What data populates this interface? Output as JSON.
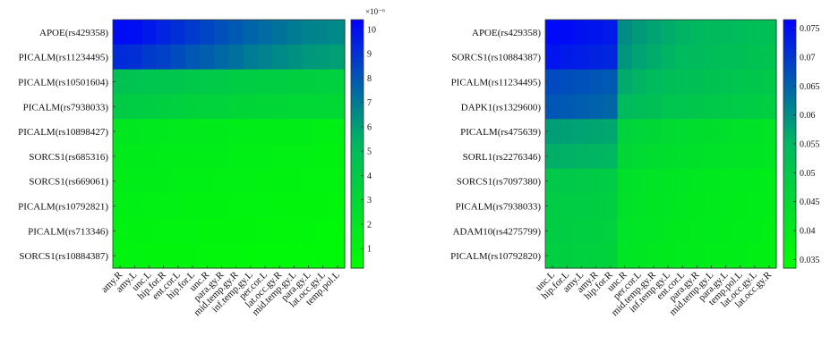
{
  "chart_data": [
    {
      "type": "heatmap",
      "rows": [
        "APOE(rs429358)",
        "PICALM(rs11234495)",
        "PICALM(rs10501604)",
        "PICALM(rs7938033)",
        "PICALM(rs10898427)",
        "SORCS1(rs685316)",
        "SORCS1(rs669061)",
        "PICALM(rs10792821)",
        "PICALM(rs713346)",
        "SORCS1(rs10884387)"
      ],
      "columns": [
        "amy.R",
        "amy.L",
        "unc.L",
        "hip.for.R",
        "ent.cor.L",
        "hip.for.L",
        "unc.R",
        "para.gy.R",
        "mid.temp.gy.R",
        "inf.temp.gy.L",
        "per.cor.L",
        "lat.occ.gy.R",
        "mid.temp.gy.L",
        "para.gy.L",
        "lat.occ.gy.L",
        "temp.pol.L"
      ],
      "colorbar": {
        "min": 0.2,
        "max": 10.4,
        "ticks": [
          1,
          2,
          3,
          4,
          5,
          6,
          7,
          8,
          9,
          10
        ],
        "multiplier": "×10⁻⁶",
        "colors": [
          "#00ff00",
          "#00b860",
          "#0000ff"
        ]
      },
      "values": [
        [
          10.1,
          10.0,
          9.7,
          9.4,
          9.1,
          8.8,
          8.5,
          8.2,
          7.9,
          7.6,
          7.4,
          7.2,
          7.0,
          6.8,
          6.7,
          6.6
        ],
        [
          9.2,
          9.1,
          8.8,
          8.6,
          8.3,
          8.0,
          7.8,
          7.5,
          7.3,
          7.0,
          6.8,
          6.6,
          6.4,
          6.2,
          6.1,
          6.0
        ],
        [
          4.6,
          4.5,
          4.4,
          4.3,
          4.2,
          4.1,
          4.0,
          3.9,
          3.8,
          3.8,
          3.7,
          3.7,
          3.6,
          3.6,
          3.5,
          3.5
        ],
        [
          3.9,
          3.8,
          3.7,
          3.6,
          3.5,
          3.4,
          3.3,
          3.3,
          3.2,
          3.2,
          3.1,
          3.1,
          3.0,
          3.0,
          3.0,
          2.9
        ],
        [
          1.9,
          1.9,
          1.8,
          1.8,
          1.7,
          1.7,
          1.6,
          1.6,
          1.5,
          1.5,
          1.5,
          1.4,
          1.4,
          1.4,
          1.3,
          1.3
        ],
        [
          1.7,
          1.6,
          1.6,
          1.5,
          1.5,
          1.4,
          1.4,
          1.4,
          1.3,
          1.3,
          1.3,
          1.2,
          1.2,
          1.2,
          1.1,
          1.1
        ],
        [
          1.5,
          1.5,
          1.4,
          1.4,
          1.3,
          1.3,
          1.3,
          1.2,
          1.2,
          1.2,
          1.1,
          1.1,
          1.1,
          1.0,
          1.0,
          1.0
        ],
        [
          1.3,
          1.3,
          1.2,
          1.2,
          1.2,
          1.1,
          1.1,
          1.1,
          1.0,
          1.0,
          1.0,
          0.9,
          0.9,
          0.9,
          0.9,
          0.8
        ],
        [
          1.1,
          1.1,
          1.1,
          1.0,
          1.0,
          1.0,
          0.9,
          0.9,
          0.9,
          0.9,
          0.8,
          0.8,
          0.8,
          0.8,
          0.7,
          0.7
        ],
        [
          1.0,
          1.0,
          0.9,
          0.9,
          0.9,
          0.9,
          0.8,
          0.8,
          0.8,
          0.7,
          0.7,
          0.7,
          0.7,
          0.6,
          0.6,
          0.6
        ]
      ]
    },
    {
      "type": "heatmap",
      "rows": [
        "APOE(rs429358)",
        "SORCS1(rs10884387)",
        "PICALM(rs11234495)",
        "DAPK1(rs1329600)",
        "PICALM(rs475639)",
        "SORL1(rs2276346)",
        "SORCS1(rs7097380)",
        "PICALM(rs7938033)",
        "ADAM10(rs4275799)",
        "PICALM(rs10792820)"
      ],
      "columns": [
        "unc.L",
        "hip.for.L",
        "amy.L",
        "amy.R",
        "hip.for.R",
        "unc.R",
        "per.cor.L",
        "mid.temp.gy.R",
        "inf.temp.gy.L",
        "ent.cor.L",
        "para.gy.R",
        "mid.temp.gy.L",
        "para.gy.L",
        "temp.pol.L",
        "lat.occ.gy.L",
        "lat.occ.gy.R"
      ],
      "colorbar": {
        "min": 0.0335,
        "max": 0.0765,
        "ticks": [
          0.035,
          0.04,
          0.045,
          0.05,
          0.055,
          0.06,
          0.065,
          0.07,
          0.075
        ],
        "multiplier": "",
        "colors": [
          "#00ff00",
          "#00b860",
          "#0000ff"
        ]
      },
      "values": [
        [
          0.0755,
          0.0752,
          0.0745,
          0.074,
          0.0735,
          0.06,
          0.0585,
          0.0575,
          0.0565,
          0.0555,
          0.055,
          0.0545,
          0.054,
          0.0535,
          0.053,
          0.0525
        ],
        [
          0.074,
          0.0735,
          0.073,
          0.0725,
          0.072,
          0.059,
          0.0575,
          0.0565,
          0.0555,
          0.0545,
          0.054,
          0.0535,
          0.053,
          0.0525,
          0.052,
          0.0515
        ],
        [
          0.068,
          0.0675,
          0.067,
          0.0665,
          0.066,
          0.0565,
          0.0555,
          0.0545,
          0.0535,
          0.053,
          0.0525,
          0.052,
          0.0515,
          0.051,
          0.0505,
          0.05
        ],
        [
          0.0665,
          0.066,
          0.0655,
          0.065,
          0.0645,
          0.0545,
          0.0535,
          0.0525,
          0.0515,
          0.051,
          0.0505,
          0.05,
          0.0495,
          0.049,
          0.0485,
          0.048
        ],
        [
          0.058,
          0.0578,
          0.0575,
          0.0572,
          0.057,
          0.047,
          0.0462,
          0.0455,
          0.0448,
          0.0442,
          0.0438,
          0.0434,
          0.043,
          0.0426,
          0.0422,
          0.0418
        ],
        [
          0.056,
          0.0558,
          0.0555,
          0.0552,
          0.055,
          0.0455,
          0.0448,
          0.0442,
          0.0436,
          0.0432,
          0.0428,
          0.0424,
          0.042,
          0.0417,
          0.0414,
          0.041
        ],
        [
          0.05,
          0.0498,
          0.0495,
          0.0492,
          0.049,
          0.043,
          0.0424,
          0.0418,
          0.0413,
          0.0409,
          0.0405,
          0.0402,
          0.0399,
          0.0396,
          0.0393,
          0.039
        ],
        [
          0.049,
          0.0488,
          0.0485,
          0.0482,
          0.048,
          0.0425,
          0.0419,
          0.0414,
          0.0409,
          0.0405,
          0.0401,
          0.0398,
          0.0395,
          0.0392,
          0.0389,
          0.0386
        ],
        [
          0.0485,
          0.0483,
          0.048,
          0.0477,
          0.0475,
          0.042,
          0.0415,
          0.041,
          0.0405,
          0.0401,
          0.0398,
          0.0395,
          0.0392,
          0.0389,
          0.0386,
          0.0383
        ],
        [
          0.048,
          0.0478,
          0.0475,
          0.0472,
          0.047,
          0.0415,
          0.041,
          0.0405,
          0.0401,
          0.0397,
          0.0394,
          0.0391,
          0.0388,
          0.0385,
          0.0382,
          0.0379
        ]
      ]
    }
  ]
}
